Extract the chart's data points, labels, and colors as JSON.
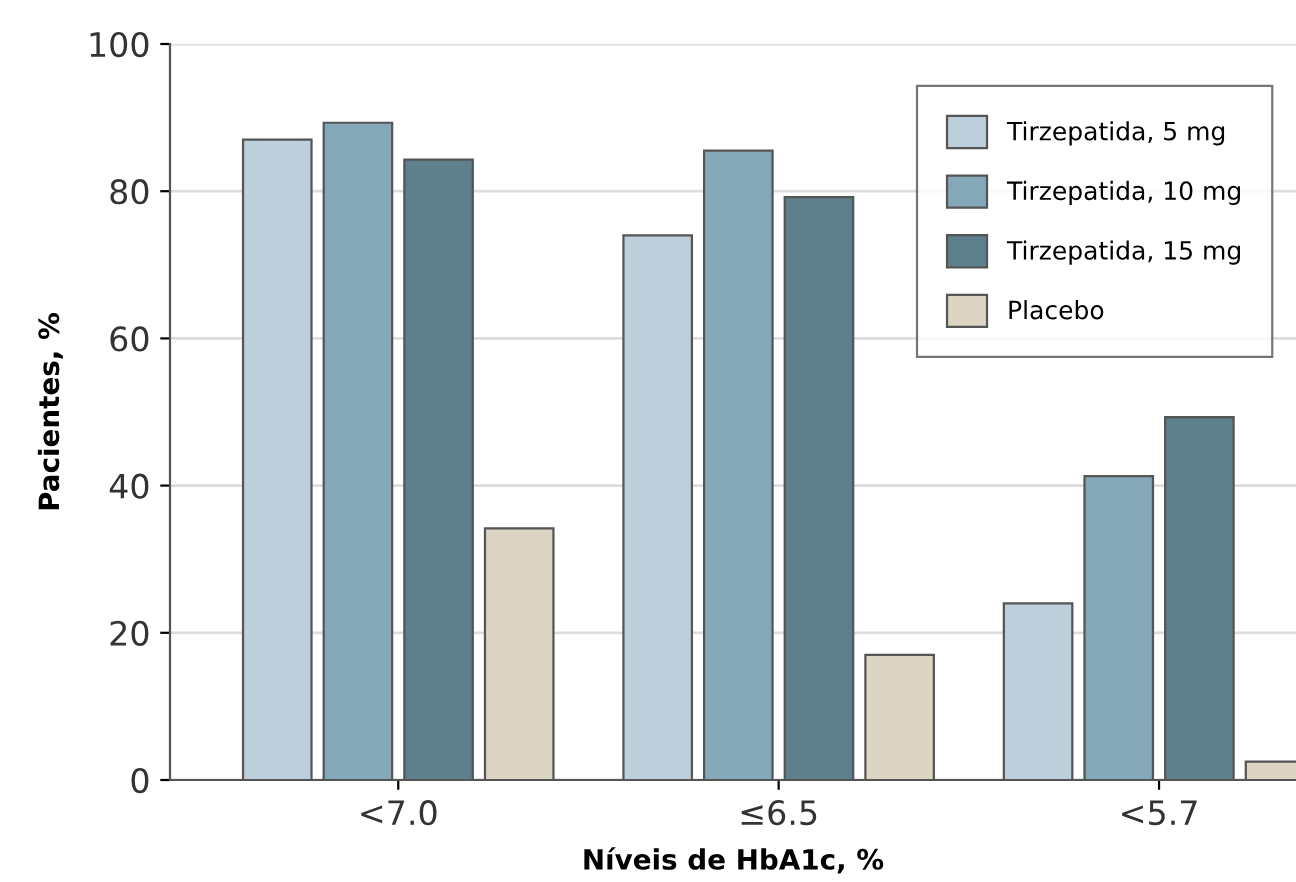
{
  "chart_data": {
    "type": "bar",
    "xlabel": "Níveis de HbA1c, %",
    "ylabel": "Pacientes, %",
    "categories": [
      "<7.0",
      "≤6.5",
      "<5.7"
    ],
    "series": [
      {
        "name": "Tirzepatida, 5 mg",
        "color": "#bdcfda",
        "values": [
          87,
          74,
          24
        ]
      },
      {
        "name": "Tirzepatida, 10 mg",
        "color": "#84a8b8",
        "values": [
          89.3,
          85.5,
          41.3
        ]
      },
      {
        "name": "Tirzepatida, 15 mg",
        "color": "#5e808c",
        "values": [
          84.3,
          79.2,
          49.3
        ]
      },
      {
        "name": "Placebo",
        "color": "#dcd5c4",
        "values": [
          34.2,
          17,
          2.5
        ]
      }
    ],
    "ylim": [
      0,
      100
    ],
    "yticks": [
      0,
      20,
      40,
      60,
      80,
      100
    ],
    "grid": "y",
    "legend": "top right"
  }
}
